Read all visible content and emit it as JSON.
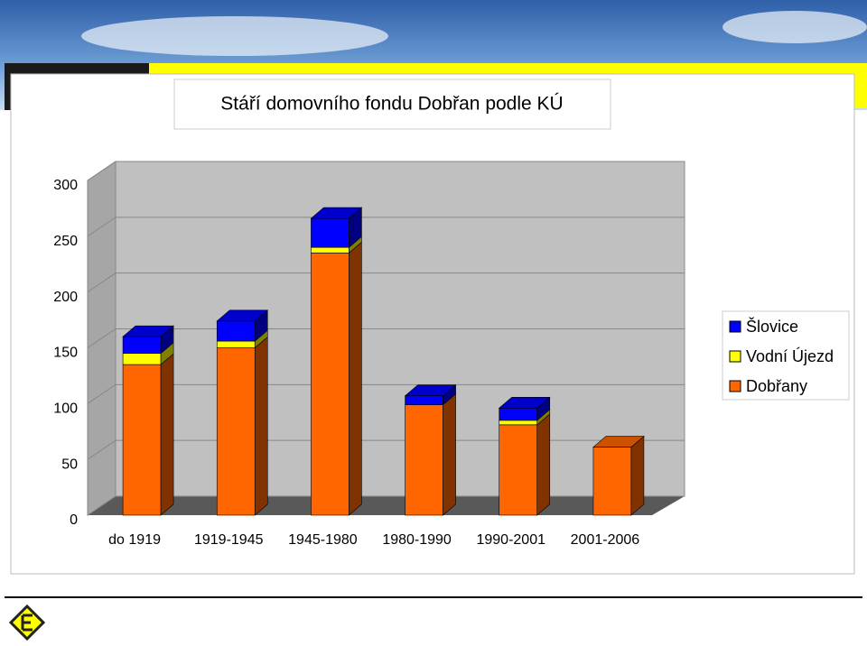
{
  "chart_data": {
    "type": "bar3d_stacked",
    "title": "Stáří domovního fondu Dobřan podle KÚ",
    "categories": [
      "do 1919",
      "1919-1945",
      "1945-1980",
      "1980-1990",
      "1990-2001",
      "2001-2006"
    ],
    "series": [
      {
        "name": "Dobřany",
        "color": "#ff6600",
        "values": [
          135,
          150,
          235,
          99,
          81,
          61
        ]
      },
      {
        "name": "Vodní Újezd",
        "color": "#ffff00",
        "values": [
          10,
          6,
          5,
          0,
          4,
          0
        ]
      },
      {
        "name": "Šlovice",
        "color": "#0000ff",
        "values": [
          15,
          18,
          26,
          8,
          11,
          0
        ]
      }
    ],
    "ylim": [
      0,
      300
    ],
    "yticks": [
      0,
      50,
      100,
      150,
      200,
      250,
      300
    ],
    "grid": true,
    "legend": "right"
  }
}
